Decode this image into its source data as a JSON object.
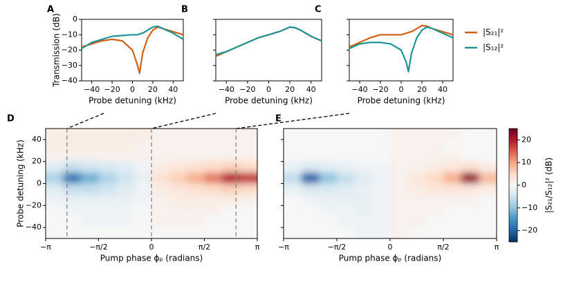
{
  "chart_data": [
    {
      "type": "line",
      "label": "A",
      "xlabel": "Probe detuning (kHz)",
      "ylabel": "Transmission (dB)",
      "x": [
        -50,
        -40,
        -30,
        -20,
        -10,
        0,
        5,
        7,
        10,
        15,
        20,
        25,
        30,
        40,
        50
      ],
      "series": [
        {
          "color": "#d35f14",
          "values": [
            -18,
            -16,
            -14,
            -13,
            -14,
            -20,
            -30,
            -35,
            -22,
            -12,
            -7,
            -5,
            -6,
            -8,
            -10
          ]
        },
        {
          "color": "#1f9494",
          "values": [
            -19,
            -15,
            -13,
            -11,
            -10.5,
            -10,
            -10,
            -9.5,
            -9,
            -7,
            -5,
            -4.5,
            -6,
            -9,
            -13
          ]
        }
      ],
      "xlim": [
        -50,
        50
      ],
      "ylim": [
        -40,
        0
      ],
      "xticks": [
        {
          "value": -40,
          "label": "−40"
        },
        {
          "value": -20,
          "label": "−20"
        },
        0,
        20,
        40
      ],
      "yticks": [
        {
          "value": -40,
          "label": "−40"
        },
        {
          "value": -30,
          "label": "−30"
        },
        {
          "value": -20,
          "label": "−20"
        },
        {
          "value": -10,
          "label": "−10"
        },
        0
      ]
    },
    {
      "type": "line",
      "label": "B",
      "xlabel": "Probe detuning (kHz)",
      "x": [
        -50,
        -40,
        -30,
        -20,
        -10,
        0,
        5,
        7,
        10,
        15,
        20,
        25,
        30,
        40,
        50
      ],
      "series": [
        {
          "color": "#d35f14",
          "values": [
            -24,
            -21,
            -18,
            -15,
            -12,
            -10,
            -9,
            -8.5,
            -8,
            -6.5,
            -5,
            -5.5,
            -7,
            -11,
            -14
          ]
        },
        {
          "color": "#1f9494",
          "values": [
            -23,
            -21,
            -18,
            -15,
            -12,
            -10,
            -9,
            -8.5,
            -8,
            -6.5,
            -5,
            -5.5,
            -7,
            -11,
            -14
          ]
        }
      ],
      "xlim": [
        -50,
        50
      ],
      "ylim": [
        -40,
        0
      ],
      "xticks": [
        {
          "value": -40,
          "label": "−40"
        },
        {
          "value": -20,
          "label": "−20"
        },
        0,
        20,
        40
      ],
      "yticks": [
        -40,
        -30,
        -20,
        -10,
        0
      ]
    },
    {
      "type": "line",
      "label": "C",
      "xlabel": "Probe detuning (kHz)",
      "x": [
        -50,
        -40,
        -30,
        -20,
        -10,
        0,
        5,
        7,
        10,
        15,
        20,
        25,
        30,
        40,
        50
      ],
      "series": [
        {
          "name": "|S₂₁|²",
          "color": "#d35f14",
          "values": [
            -18,
            -15,
            -12,
            -10,
            -10,
            -10,
            -9,
            -8.5,
            -8,
            -6,
            -4,
            -4.5,
            -6,
            -8,
            -10
          ]
        },
        {
          "name": "|S₁₂|²",
          "color": "#1f9494",
          "values": [
            -19,
            -16,
            -15,
            -15,
            -16,
            -20,
            -28,
            -34,
            -22,
            -12,
            -7,
            -5,
            -6,
            -9,
            -12
          ]
        }
      ],
      "xlim": [
        -50,
        50
      ],
      "ylim": [
        -40,
        0
      ],
      "xticks": [
        {
          "value": -40,
          "label": "−40"
        },
        {
          "value": -20,
          "label": "−20"
        },
        0,
        20,
        40
      ],
      "yticks": [
        -40,
        -30,
        -20,
        -10,
        0
      ]
    },
    {
      "type": "heatmap",
      "label": "D",
      "xlabel": "Pump phase ϕₚ (radians)",
      "ylabel": "Probe detuning (kHz)",
      "x": [
        -2.88,
        -2.36,
        -1.83,
        -1.31,
        -0.79,
        -0.26,
        0.26,
        0.79,
        1.31,
        1.83,
        2.36,
        2.88
      ],
      "y": [
        45,
        35,
        25,
        15,
        5,
        -5,
        -15,
        -25,
        -35,
        -45
      ],
      "values": [
        [
          2,
          2,
          2,
          2,
          2,
          2,
          1,
          1,
          1,
          1,
          1,
          1
        ],
        [
          2,
          2,
          2,
          2,
          2,
          1,
          1,
          1,
          1,
          1,
          1,
          1
        ],
        [
          1,
          1,
          1,
          1,
          1,
          1,
          1,
          1,
          1,
          1,
          1,
          1
        ],
        [
          -3,
          -6,
          -5,
          -4,
          -3,
          -1,
          2,
          3,
          4,
          5,
          6,
          5
        ],
        [
          -8,
          -18,
          -12,
          -8,
          -5,
          -2,
          4,
          6,
          9,
          13,
          20,
          18
        ],
        [
          -3,
          -6,
          -6,
          -5,
          -3,
          -1,
          2,
          3,
          4,
          5,
          6,
          5
        ],
        [
          -1,
          -2,
          -2,
          -2,
          -2,
          -1,
          1,
          2,
          2,
          2,
          2,
          1
        ],
        [
          0,
          -1,
          -1,
          -1,
          -1,
          0,
          1,
          1,
          1,
          1,
          0,
          0
        ],
        [
          0,
          0,
          -1,
          -1,
          -1,
          0,
          1,
          1,
          1,
          0,
          0,
          0
        ],
        [
          0,
          0,
          0,
          0,
          0,
          0,
          0,
          0,
          0,
          0,
          0,
          0
        ]
      ],
      "clim": [
        -25,
        25
      ],
      "markers": [
        -2.51,
        0,
        2.51
      ],
      "xlim": [
        -3.14159,
        3.14159
      ],
      "ylim": [
        -50,
        50
      ],
      "xticks": [
        {
          "value": -3.14159,
          "label": "−π"
        },
        {
          "value": -1.5708,
          "label": "−π/2"
        },
        0,
        {
          "value": 1.5708,
          "label": "π/2"
        },
        {
          "value": 3.14159,
          "label": "π"
        }
      ],
      "yticks": [
        {
          "value": -40,
          "label": "−40"
        },
        {
          "value": -20,
          "label": "−20"
        },
        0,
        20,
        40
      ]
    },
    {
      "type": "heatmap",
      "label": "E",
      "xlabel": "Pump phase ϕₚ (radians)",
      "x": [
        -2.88,
        -2.36,
        -1.83,
        -1.31,
        -0.79,
        -0.26,
        0.26,
        0.79,
        1.31,
        1.83,
        2.36,
        2.88
      ],
      "y": [
        45,
        35,
        25,
        15,
        5,
        -5,
        -15,
        -25,
        -35,
        -45
      ],
      "values": [
        [
          0,
          0,
          0,
          0,
          0,
          0,
          1,
          1,
          1,
          1,
          0,
          0
        ],
        [
          0,
          0,
          0,
          0,
          0,
          0,
          1,
          1,
          1,
          0,
          0,
          0
        ],
        [
          0,
          0,
          0,
          0,
          0,
          0,
          1,
          1,
          1,
          1,
          0,
          0
        ],
        [
          -2,
          -4,
          -3,
          -2,
          -1,
          -1,
          1,
          1,
          2,
          3,
          4,
          2
        ],
        [
          -6,
          -20,
          -10,
          -6,
          -3,
          -1,
          1,
          3,
          5,
          9,
          22,
          8
        ],
        [
          -2,
          -4,
          -4,
          -3,
          -2,
          -1,
          1,
          2,
          3,
          3,
          3,
          2
        ],
        [
          0,
          -1,
          -2,
          -2,
          -2,
          -1,
          1,
          1,
          1,
          1,
          1,
          0
        ],
        [
          0,
          0,
          -1,
          -1,
          -2,
          -1,
          1,
          1,
          1,
          0,
          0,
          0
        ],
        [
          0,
          0,
          0,
          -1,
          -1,
          -1,
          1,
          1,
          0,
          0,
          0,
          0
        ],
        [
          0,
          0,
          0,
          0,
          -1,
          -1,
          1,
          0,
          0,
          0,
          0,
          0
        ]
      ],
      "clim": [
        -25,
        25
      ],
      "xlim": [
        -3.14159,
        3.14159
      ],
      "ylim": [
        -50,
        50
      ],
      "xticks": [
        {
          "value": -3.14159,
          "label": "−π"
        },
        {
          "value": -1.5708,
          "label": "−π/2"
        },
        0,
        {
          "value": 1.5708,
          "label": "π/2"
        },
        {
          "value": 3.14159,
          "label": "π"
        }
      ],
      "yticks": [
        -40,
        -20,
        0,
        20,
        40
      ],
      "colorbar": {
        "label": "|S₂₁/S₁₂|² (dB)",
        "lim": [
          -25,
          25
        ],
        "ticks": [
          {
            "value": -20,
            "label": "−20"
          },
          {
            "value": -10,
            "label": "−10"
          },
          0,
          10,
          20
        ]
      }
    }
  ]
}
